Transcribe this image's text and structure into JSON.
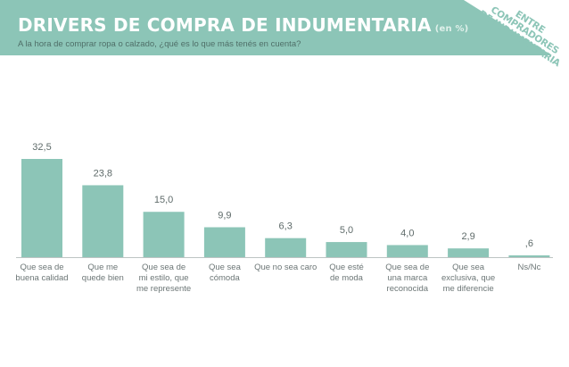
{
  "header": {
    "title": "DRIVERS DE COMPRA DE INDUMENTARIA",
    "unit": "(en %)",
    "subtitle": "A la hora de comprar ropa o calzado, ¿qué es lo que más tenés en cuenta?",
    "corner_line1": "ENTRE COMPRADORES",
    "corner_line2": "DE INDUMENTARIA"
  },
  "colors": {
    "bar": "#8cc5b7",
    "header": "#8cc5b7",
    "baseline": "#bdc4c3"
  },
  "chart_data": {
    "type": "bar",
    "title": "DRIVERS DE COMPRA DE INDUMENTARIA (en %)",
    "xlabel": "",
    "ylabel": "",
    "ylim": [
      0,
      32.5
    ],
    "categories": [
      [
        "Que sea de",
        "buena calidad"
      ],
      [
        "Que me",
        "quede bien"
      ],
      [
        "Que sea de",
        "mi estilo, que",
        "me represente"
      ],
      [
        "Que sea",
        "cómoda"
      ],
      [
        "Que no sea caro"
      ],
      [
        "Que esté",
        "de moda"
      ],
      [
        "Que sea de",
        "una marca",
        "reconocida"
      ],
      [
        "Que sea",
        "exclusiva, que",
        "me diferencie"
      ],
      [
        "Ns/Nc"
      ]
    ],
    "values": [
      32.5,
      23.8,
      15.0,
      9.9,
      6.3,
      5.0,
      4.0,
      2.9,
      0.6
    ],
    "value_labels": [
      "32,5",
      "23,8",
      "15,0",
      "9,9",
      "6,3",
      "5,0",
      "4,0",
      "2,9",
      ",6"
    ]
  }
}
